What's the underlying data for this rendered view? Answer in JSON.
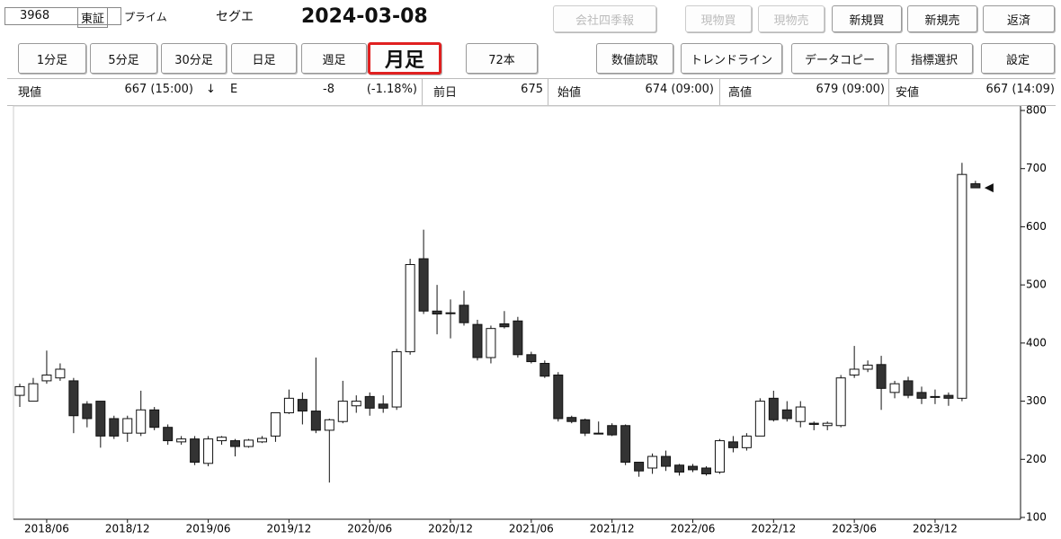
{
  "ui": {
    "code": "3968",
    "market": "東証",
    "segment": "プライム",
    "name": "セグエ",
    "date": "2024-03-08",
    "top_buttons": [
      "会社四季報",
      "現物買",
      "現物売",
      "新規買",
      "新規売",
      "返済"
    ],
    "period_buttons": [
      "1分足",
      "5分足",
      "30分足",
      "日足",
      "週足",
      "月足"
    ],
    "count": "72本",
    "tool_buttons": [
      "数値読取",
      "トレンドライン",
      "データコピー",
      "指標選択",
      "設定"
    ],
    "info": {
      "current_label": "現値",
      "current": "667 (15:00)",
      "arrow": "↓",
      "flag": "E",
      "change": "-8",
      "change_pct": "(-1.18%)",
      "prev_label": "前日",
      "prev": "675",
      "open_label": "始値",
      "open": "674 (09:00)",
      "high_label": "高値",
      "high": "679 (09:00)",
      "low_label": "安値",
      "low": "667 (14:09)"
    }
  },
  "chart_data": {
    "type": "candlestick",
    "categories": [
      null,
      null,
      "2018/06",
      null,
      null,
      null,
      null,
      null,
      "2018/12",
      null,
      null,
      null,
      null,
      null,
      "2019/06",
      null,
      null,
      null,
      null,
      null,
      "2019/12",
      null,
      null,
      null,
      null,
      null,
      "2020/06",
      null,
      null,
      null,
      null,
      null,
      "2020/12",
      null,
      null,
      null,
      null,
      null,
      "2021/06",
      null,
      null,
      null,
      null,
      null,
      "2021/12",
      null,
      null,
      null,
      null,
      null,
      "2022/06",
      null,
      null,
      null,
      null,
      null,
      "2022/12",
      null,
      null,
      null,
      null,
      null,
      "2023/06",
      null,
      null,
      null,
      null,
      null,
      "2023/12",
      null,
      null,
      null
    ],
    "open": [
      310,
      300,
      335,
      340,
      335,
      295,
      300,
      270,
      245,
      245,
      285,
      255,
      230,
      235,
      193,
      232,
      232,
      222,
      230,
      240,
      280,
      303,
      283,
      250,
      265,
      292,
      308,
      295,
      290,
      385,
      545,
      455,
      452,
      465,
      432,
      375,
      433,
      438,
      380,
      365,
      345,
      272,
      268,
      245,
      258,
      258,
      195,
      185,
      205,
      190,
      188,
      185,
      178,
      230,
      220,
      240,
      305,
      285,
      265,
      262,
      258,
      258,
      345,
      355,
      363,
      315,
      335,
      315,
      308,
      310,
      305,
      674
    ],
    "high": [
      330,
      340,
      387,
      365,
      340,
      300,
      300,
      275,
      275,
      318,
      290,
      260,
      240,
      240,
      240,
      240,
      235,
      235,
      240,
      280,
      320,
      315,
      375,
      270,
      335,
      310,
      315,
      310,
      390,
      545,
      595,
      500,
      475,
      490,
      440,
      430,
      455,
      445,
      385,
      370,
      350,
      275,
      270,
      265,
      262,
      260,
      195,
      210,
      215,
      192,
      192,
      188,
      235,
      240,
      245,
      305,
      318,
      300,
      300,
      265,
      265,
      345,
      395,
      370,
      378,
      335,
      342,
      325,
      320,
      315,
      710,
      679
    ],
    "low": [
      290,
      300,
      330,
      335,
      245,
      255,
      220,
      235,
      230,
      240,
      250,
      225,
      225,
      190,
      188,
      225,
      205,
      220,
      228,
      230,
      278,
      260,
      245,
      160,
      262,
      280,
      275,
      280,
      285,
      380,
      450,
      415,
      408,
      430,
      370,
      365,
      425,
      375,
      365,
      340,
      265,
      262,
      240,
      243,
      240,
      190,
      170,
      175,
      180,
      172,
      178,
      172,
      175,
      212,
      215,
      240,
      265,
      265,
      255,
      250,
      250,
      255,
      340,
      350,
      285,
      305,
      305,
      295,
      295,
      292,
      300,
      667
    ],
    "close": [
      325,
      330,
      345,
      355,
      275,
      270,
      240,
      240,
      270,
      285,
      255,
      232,
      235,
      195,
      235,
      238,
      222,
      233,
      236,
      280,
      305,
      283,
      250,
      268,
      300,
      300,
      288,
      288,
      385,
      535,
      455,
      450,
      452,
      435,
      375,
      425,
      428,
      380,
      368,
      343,
      270,
      265,
      245,
      245,
      242,
      195,
      180,
      205,
      188,
      178,
      182,
      175,
      232,
      220,
      240,
      300,
      268,
      270,
      290,
      260,
      262,
      340,
      355,
      362,
      322,
      330,
      310,
      305,
      308,
      305,
      690,
      667
    ],
    "up_color": "#ffffff",
    "down_color": "#333333",
    "edge_color": "#111111",
    "marker_color": "#111111",
    "ylim": [
      100,
      800
    ],
    "yticks": [
      100,
      200,
      300,
      400,
      500,
      600,
      700,
      800
    ],
    "y_axis": "right",
    "grid": false
  }
}
